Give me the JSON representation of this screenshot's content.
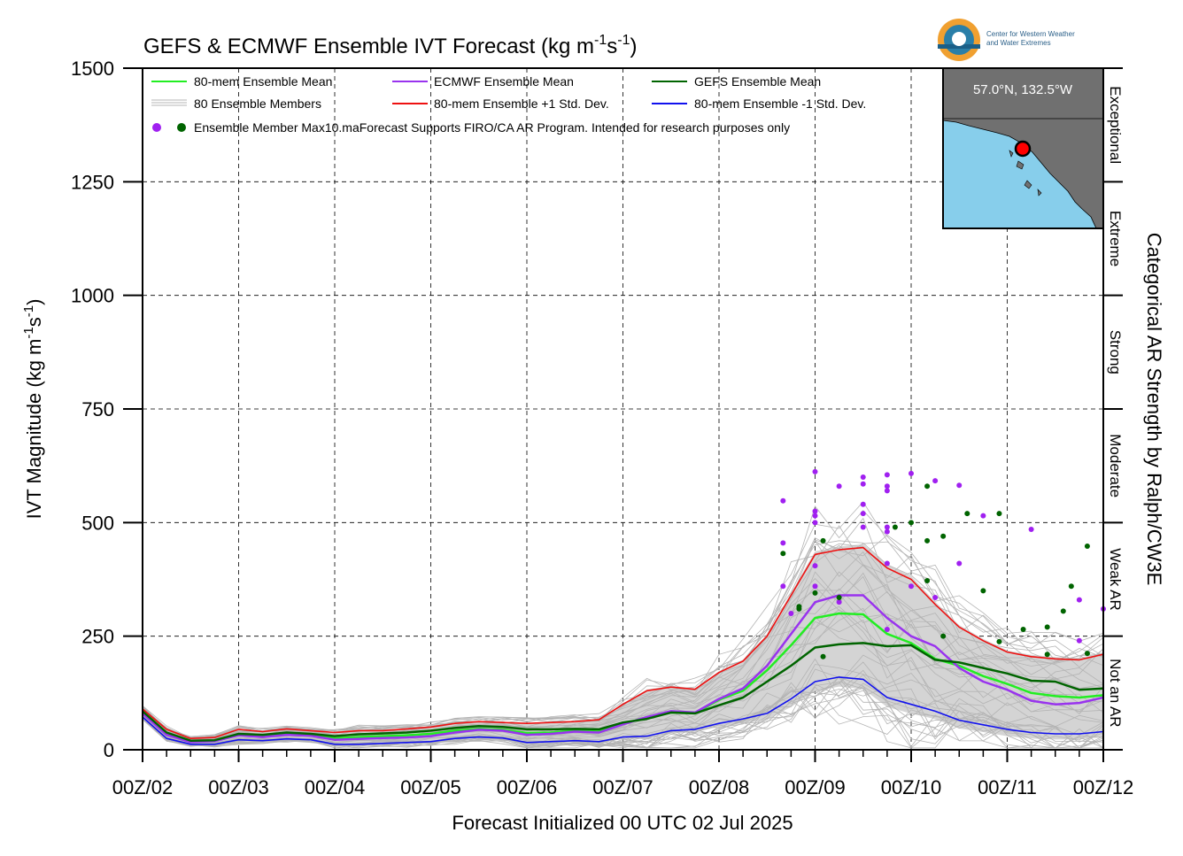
{
  "chart_data": {
    "type": "line",
    "title": "GEFS & ECMWF Ensemble IVT Forecast (kg m",
    "title_sup1": "-1",
    "title_mid": "s",
    "title_sup2": "-1",
    "title_end": ")",
    "ylabel": "IVT Magnitude (kg m",
    "ylabel_sup1": "-1",
    "ylabel_mid": "s",
    "ylabel_sup2": "-1",
    "ylabel_end": ")",
    "xlabel": "Forecast Initialized 00 UTC 02 Jul 2025",
    "right_label": "Categorical AR Strength by Ralph/CW3E",
    "logo_text_line1": "Center for Western Weather",
    "logo_text_line2": "and Water Extremes",
    "inset_label": "57.0°N, 132.5°W",
    "ylim": [
      0,
      1500
    ],
    "xlim": [
      0,
      240
    ],
    "grid": true,
    "y_ticks": [
      "0",
      "250",
      "500",
      "750",
      "1000",
      "1250",
      "1500"
    ],
    "y_tick_values": [
      0,
      250,
      500,
      750,
      1000,
      1250,
      1500
    ],
    "x_ticks": [
      "00Z/02",
      "00Z/03",
      "00Z/04",
      "00Z/05",
      "00Z/06",
      "00Z/07",
      "00Z/08",
      "00Z/09",
      "00Z/10",
      "00Z/11",
      "00Z/12"
    ],
    "x_tick_hours": [
      0,
      24,
      48,
      72,
      96,
      120,
      144,
      168,
      192,
      216,
      240
    ],
    "categories_right": [
      {
        "label": "Not an AR",
        "from": 0,
        "to": 250
      },
      {
        "label": "Weak AR",
        "from": 250,
        "to": 500
      },
      {
        "label": "Moderate",
        "from": 500,
        "to": 750
      },
      {
        "label": "Strong",
        "from": 750,
        "to": 1000
      },
      {
        "label": "Extreme",
        "from": 1000,
        "to": 1250
      },
      {
        "label": "Exceptional",
        "from": 1250,
        "to": 1500
      }
    ],
    "legend": {
      "mean80": "80-mem Ensemble Mean",
      "members": "80 Ensemble Members",
      "dots": "Ensemble Member Max",
      "ecmwf": "ECMWF Ensemble Mean",
      "plus": "80-mem Ensemble +1 Std. Dev.",
      "note": "10.maForecast Supports FIRO/CA AR Program. Intended for research purposes only",
      "gefs": "GEFS Ensemble Mean",
      "minus": "80-mem Ensemble -1 Std. Dev."
    },
    "colors": {
      "mean80": "#22ee22",
      "ecmwf": "#9933ee",
      "gefs": "#006400",
      "plus": "#ee1111",
      "minus": "#1111ee",
      "members": "#b4b4b4",
      "envelope": "#d4d4d4",
      "ecmwf_dot": "#a020f0",
      "gefs_dot": "#006400",
      "ocean": "#87ceeb",
      "land": "#707070"
    },
    "series": [
      {
        "name": "80-mem Ensemble Mean",
        "x": [
          0,
          6,
          12,
          18,
          24,
          30,
          36,
          42,
          48,
          54,
          60,
          66,
          72,
          78,
          84,
          90,
          96,
          102,
          108,
          114,
          120,
          126,
          132,
          138,
          144,
          150,
          156,
          162,
          168,
          174,
          180,
          186,
          192,
          198,
          204,
          210,
          216,
          222,
          228,
          234,
          240
        ],
        "y": [
          82,
          35,
          18,
          20,
          33,
          30,
          35,
          32,
          25,
          28,
          30,
          32,
          35,
          42,
          46,
          44,
          37,
          38,
          42,
          40,
          58,
          70,
          82,
          80,
          110,
          130,
          175,
          230,
          290,
          300,
          298,
          255,
          235,
          200,
          185,
          162,
          145,
          125,
          118,
          115,
          120
        ]
      },
      {
        "name": "ECMWF Ensemble Mean",
        "x": [
          0,
          6,
          12,
          18,
          24,
          30,
          36,
          42,
          48,
          54,
          60,
          66,
          72,
          78,
          84,
          90,
          96,
          102,
          108,
          114,
          120,
          126,
          132,
          138,
          144,
          150,
          156,
          162,
          168,
          174,
          180,
          186,
          192,
          198,
          204,
          210,
          216,
          222,
          228,
          234,
          240
        ],
        "y": [
          80,
          33,
          17,
          19,
          32,
          28,
          33,
          31,
          22,
          24,
          26,
          27,
          30,
          38,
          44,
          42,
          33,
          35,
          40,
          38,
          56,
          72,
          85,
          82,
          112,
          135,
          185,
          255,
          325,
          340,
          340,
          290,
          250,
          228,
          180,
          150,
          132,
          108,
          100,
          103,
          115
        ]
      },
      {
        "name": "GEFS Ensemble Mean",
        "x": [
          0,
          6,
          12,
          18,
          24,
          30,
          36,
          42,
          48,
          54,
          60,
          66,
          72,
          78,
          84,
          90,
          96,
          102,
          108,
          114,
          120,
          126,
          132,
          138,
          144,
          150,
          156,
          162,
          168,
          174,
          180,
          186,
          192,
          198,
          204,
          210,
          216,
          222,
          228,
          234,
          240
        ],
        "y": [
          85,
          38,
          20,
          21,
          35,
          33,
          38,
          35,
          30,
          34,
          36,
          38,
          42,
          48,
          52,
          50,
          45,
          45,
          46,
          45,
          60,
          68,
          82,
          80,
          98,
          115,
          150,
          185,
          225,
          232,
          235,
          228,
          230,
          198,
          192,
          180,
          168,
          152,
          150,
          132,
          135
        ]
      },
      {
        "name": "80-mem Ensemble +1 Std. Dev.",
        "x": [
          0,
          6,
          12,
          18,
          24,
          30,
          36,
          42,
          48,
          54,
          60,
          66,
          72,
          78,
          84,
          90,
          96,
          102,
          108,
          114,
          120,
          126,
          132,
          138,
          144,
          150,
          156,
          162,
          168,
          174,
          180,
          186,
          192,
          198,
          204,
          210,
          216,
          222,
          228,
          234,
          240
        ],
        "y": [
          90,
          45,
          25,
          27,
          45,
          40,
          46,
          42,
          38,
          42,
          42,
          46,
          50,
          58,
          62,
          60,
          58,
          60,
          62,
          66,
          100,
          130,
          138,
          133,
          170,
          195,
          250,
          340,
          430,
          440,
          445,
          400,
          375,
          320,
          270,
          240,
          215,
          205,
          200,
          198,
          210
        ]
      },
      {
        "name": "80-mem Ensemble -1 Std. Dev.",
        "x": [
          0,
          6,
          12,
          18,
          24,
          30,
          36,
          42,
          48,
          54,
          60,
          66,
          72,
          78,
          84,
          90,
          96,
          102,
          108,
          114,
          120,
          126,
          132,
          138,
          144,
          150,
          156,
          162,
          168,
          174,
          180,
          186,
          192,
          198,
          204,
          210,
          216,
          222,
          228,
          234,
          240
        ],
        "y": [
          72,
          25,
          12,
          12,
          22,
          20,
          24,
          22,
          12,
          12,
          14,
          16,
          18,
          25,
          28,
          26,
          16,
          18,
          20,
          18,
          28,
          30,
          42,
          45,
          58,
          68,
          80,
          112,
          150,
          160,
          155,
          115,
          100,
          85,
          65,
          55,
          45,
          38,
          35,
          35,
          40
        ]
      }
    ],
    "ecmwf_member_max": [
      {
        "x": 162,
        "y": 300
      },
      {
        "x": 168,
        "y": 612
      },
      {
        "x": 168,
        "y": 525
      },
      {
        "x": 168,
        "y": 515
      },
      {
        "x": 168,
        "y": 500
      },
      {
        "x": 174,
        "y": 580
      },
      {
        "x": 174,
        "y": 325
      },
      {
        "x": 180,
        "y": 600
      },
      {
        "x": 180,
        "y": 585
      },
      {
        "x": 180,
        "y": 540
      },
      {
        "x": 180,
        "y": 520
      },
      {
        "x": 180,
        "y": 490
      },
      {
        "x": 186,
        "y": 605
      },
      {
        "x": 186,
        "y": 580
      },
      {
        "x": 186,
        "y": 570
      },
      {
        "x": 186,
        "y": 490
      },
      {
        "x": 186,
        "y": 480
      },
      {
        "x": 186,
        "y": 410
      },
      {
        "x": 186,
        "y": 265
      },
      {
        "x": 192,
        "y": 608
      },
      {
        "x": 192,
        "y": 360
      },
      {
        "x": 198,
        "y": 592
      },
      {
        "x": 198,
        "y": 335
      },
      {
        "x": 204,
        "y": 582
      },
      {
        "x": 204,
        "y": 410
      },
      {
        "x": 210,
        "y": 515
      },
      {
        "x": 222,
        "y": 485
      },
      {
        "x": 234,
        "y": 330
      },
      {
        "x": 234,
        "y": 240
      },
      {
        "x": 240,
        "y": 310
      },
      {
        "x": 160,
        "y": 548
      },
      {
        "x": 160,
        "y": 455
      },
      {
        "x": 160,
        "y": 360
      },
      {
        "x": 168,
        "y": 405
      },
      {
        "x": 168,
        "y": 360
      }
    ],
    "gefs_member_max": [
      {
        "x": 164,
        "y": 310
      },
      {
        "x": 170,
        "y": 205
      },
      {
        "x": 170,
        "y": 460
      },
      {
        "x": 174,
        "y": 335
      },
      {
        "x": 188,
        "y": 490
      },
      {
        "x": 192,
        "y": 500
      },
      {
        "x": 196,
        "y": 580
      },
      {
        "x": 196,
        "y": 460
      },
      {
        "x": 196,
        "y": 372
      },
      {
        "x": 200,
        "y": 470
      },
      {
        "x": 200,
        "y": 250
      },
      {
        "x": 206,
        "y": 520
      },
      {
        "x": 210,
        "y": 350
      },
      {
        "x": 214,
        "y": 520
      },
      {
        "x": 214,
        "y": 238
      },
      {
        "x": 220,
        "y": 265
      },
      {
        "x": 226,
        "y": 270
      },
      {
        "x": 226,
        "y": 210
      },
      {
        "x": 230,
        "y": 305
      },
      {
        "x": 232,
        "y": 360
      },
      {
        "x": 236,
        "y": 448
      },
      {
        "x": 236,
        "y": 212
      },
      {
        "x": 160,
        "y": 432
      },
      {
        "x": 168,
        "y": 345
      },
      {
        "x": 164,
        "y": 315
      }
    ]
  }
}
